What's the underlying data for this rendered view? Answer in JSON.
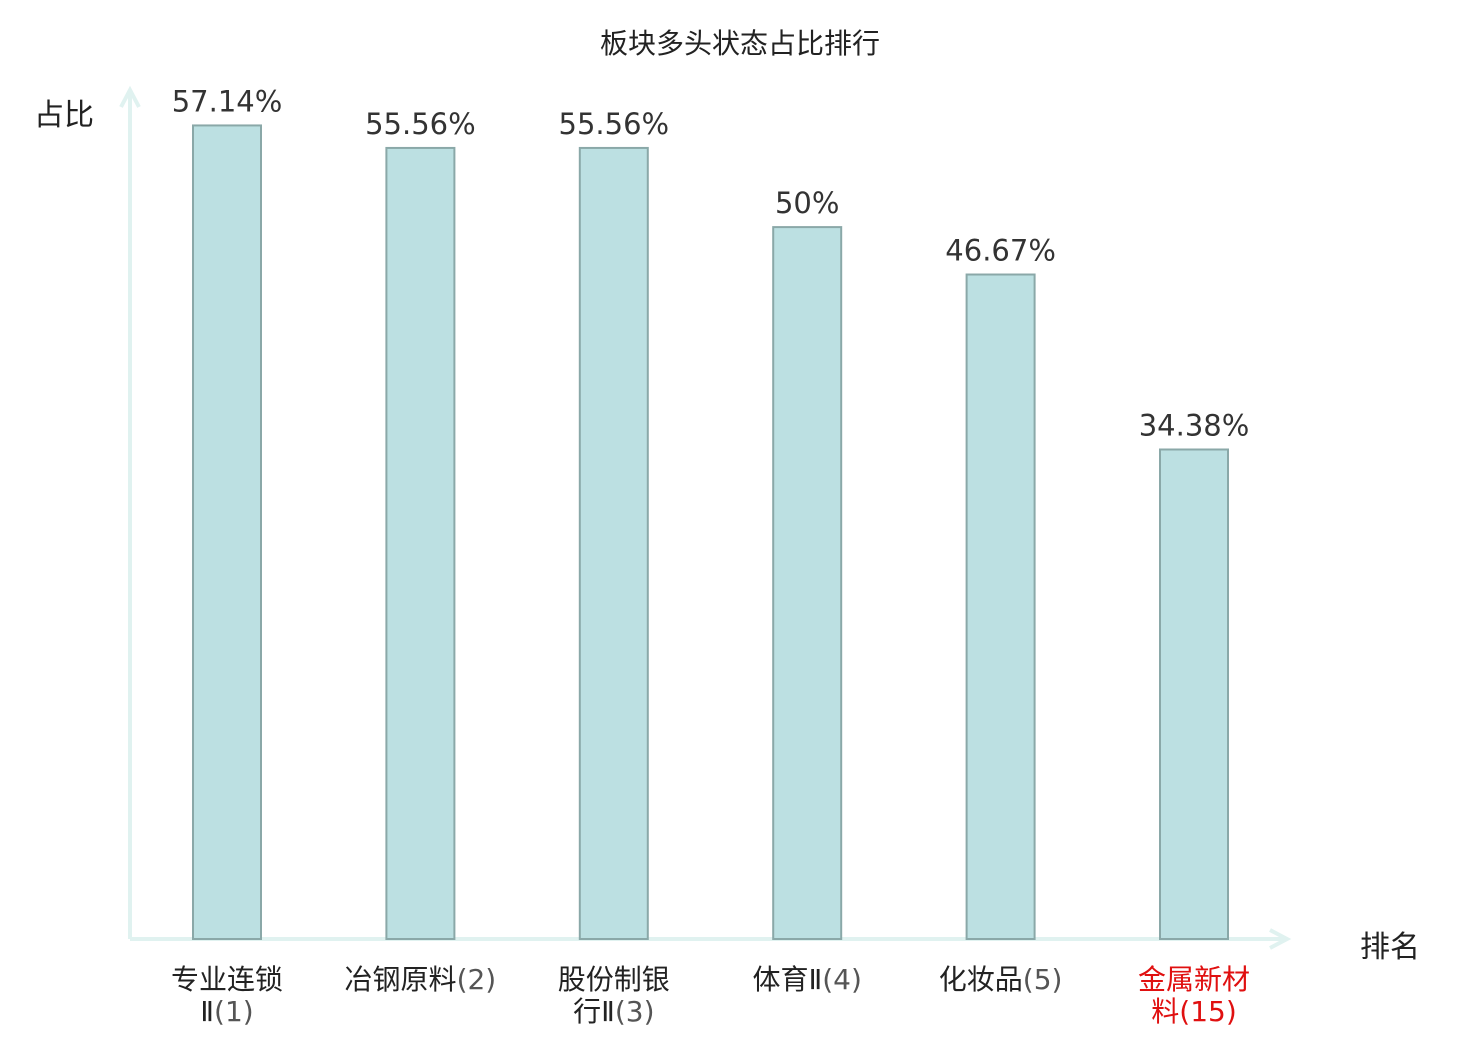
{
  "chart_data": {
    "type": "bar",
    "title": "板块多头状态占比排行",
    "ylabel": "占比",
    "xlabel": "排名",
    "categories": [
      {
        "line1": "专业连锁",
        "line2": "Ⅱ",
        "rank": "(1)",
        "highlight": false
      },
      {
        "line1": "冶钢原料",
        "line2": "",
        "rank": "(2)",
        "highlight": false
      },
      {
        "line1": "股份制银",
        "line2": "行Ⅱ",
        "rank": "(3)",
        "highlight": false
      },
      {
        "line1": "体育Ⅱ",
        "line2": "",
        "rank": "(4)",
        "highlight": false
      },
      {
        "line1": "化妆品",
        "line2": "",
        "rank": "(5)",
        "highlight": false
      },
      {
        "line1": "金属新材",
        "line2": "料",
        "rank": "(15)",
        "highlight": true
      }
    ],
    "values": [
      57.14,
      55.56,
      55.56,
      50,
      46.67,
      34.38
    ],
    "value_labels": [
      "57.14%",
      "55.56%",
      "55.56%",
      "50%",
      "46.67%",
      "34.38%"
    ],
    "ylim": [
      0,
      60
    ],
    "grid": false,
    "legend": "none"
  },
  "colors": {
    "bar_fill": "#bce0e2",
    "bar_stroke": "#8aa8a8",
    "axis": "#e0f2f0",
    "text": "#222222",
    "highlight": "#e01010"
  }
}
